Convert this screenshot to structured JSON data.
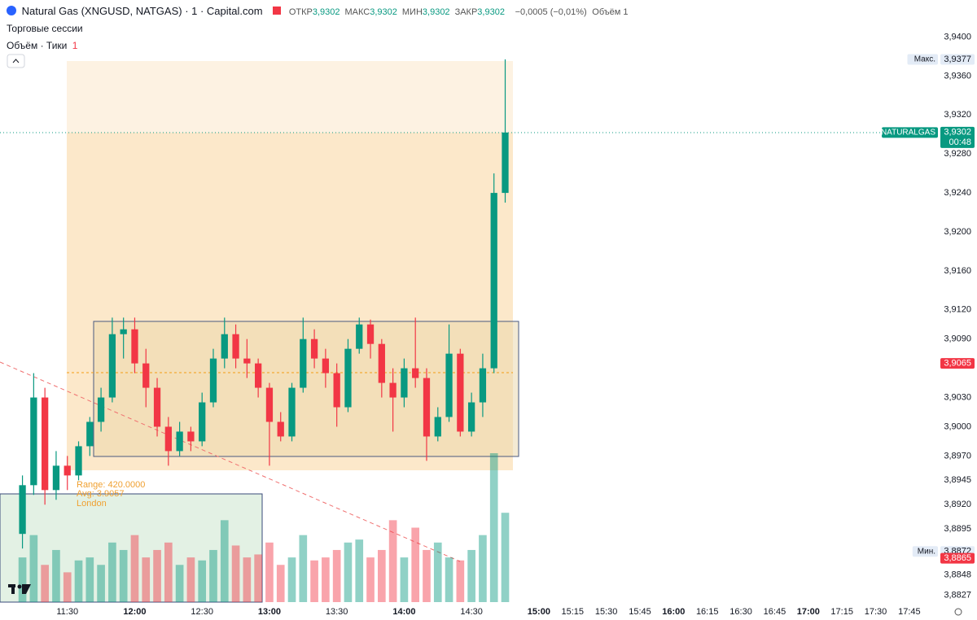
{
  "chart_data": {
    "type": "candlestick",
    "title": "Natural Gas (XNGUSD, NATGAS) · 1 · Capital.com",
    "ohlc_legend": [
      {
        "label": "ОТКР",
        "value": "3,9302"
      },
      {
        "label": "МАКС",
        "value": "3,9302"
      },
      {
        "label": "МИН",
        "value": "3,9302"
      },
      {
        "label": "ЗАКР",
        "value": "3,9302"
      }
    ],
    "change": "−0,0005 (−0,01%)",
    "volume_legend": {
      "label": "Объём",
      "value": "1"
    },
    "sessions_label": "Торговые сессии",
    "volume_pane": {
      "label": "Объём · Тики",
      "value": "1"
    },
    "annotations": [
      "Range: 420.0000",
      "Avg: 3.9057",
      "London"
    ],
    "up_color": "#089981",
    "down_color": "#f23645",
    "x": [
      670,
      675,
      680,
      685,
      690,
      695,
      700,
      705,
      710,
      715,
      720,
      725,
      730,
      735,
      740,
      745,
      750,
      755,
      760,
      765,
      770,
      775,
      780,
      785,
      790,
      795,
      800,
      805,
      810,
      815,
      820,
      825,
      830,
      835,
      840,
      845,
      850,
      855,
      860,
      865,
      870,
      875,
      880,
      885
    ],
    "open": [
      3.889,
      3.894,
      3.903,
      3.8935,
      3.896,
      3.895,
      3.898,
      3.9005,
      3.903,
      3.9095,
      3.91,
      3.9065,
      3.904,
      3.9,
      3.8975,
      3.8995,
      3.8985,
      3.9025,
      3.907,
      3.9095,
      3.907,
      3.9065,
      3.904,
      3.9005,
      3.899,
      3.904,
      3.909,
      3.907,
      3.9055,
      3.902,
      3.908,
      3.9105,
      3.9085,
      3.9045,
      3.903,
      3.906,
      3.905,
      3.899,
      3.901,
      3.9075,
      3.8995,
      3.9025,
      3.906,
      3.924
    ],
    "high": [
      3.895,
      3.9055,
      3.904,
      3.8975,
      3.897,
      3.8985,
      3.901,
      3.904,
      3.9112,
      3.9112,
      3.9112,
      3.908,
      3.905,
      3.901,
      3.9005,
      3.9,
      3.9035,
      3.908,
      3.9112,
      3.9105,
      3.909,
      3.907,
      3.9045,
      3.9015,
      3.9045,
      3.9112,
      3.91,
      3.908,
      3.9065,
      3.909,
      3.9112,
      3.911,
      3.909,
      3.906,
      3.907,
      3.9112,
      3.906,
      3.902,
      3.9105,
      3.908,
      3.9035,
      3.9075,
      3.926,
      3.9377
    ],
    "low": [
      3.8875,
      3.893,
      3.892,
      3.8925,
      3.8935,
      3.8945,
      3.897,
      3.8995,
      3.9025,
      3.907,
      3.9055,
      3.902,
      3.899,
      3.896,
      3.897,
      3.8975,
      3.898,
      3.902,
      3.906,
      3.906,
      3.905,
      3.903,
      3.896,
      3.8985,
      3.8985,
      3.9035,
      3.906,
      3.904,
      3.9,
      3.9015,
      3.9075,
      3.907,
      3.903,
      3.8995,
      3.902,
      3.904,
      3.8965,
      3.8985,
      3.9005,
      3.899,
      3.899,
      3.901,
      3.9055,
      3.923
    ],
    "close": [
      3.894,
      3.903,
      3.8935,
      3.896,
      3.895,
      3.898,
      3.9005,
      3.903,
      3.9095,
      3.91,
      3.9065,
      3.904,
      3.9,
      3.8975,
      3.8995,
      3.8985,
      3.9025,
      3.907,
      3.9095,
      3.907,
      3.9065,
      3.904,
      3.9005,
      3.899,
      3.904,
      3.909,
      3.907,
      3.9055,
      3.902,
      3.908,
      3.9105,
      3.9085,
      3.9045,
      3.903,
      3.906,
      3.905,
      3.899,
      3.901,
      3.9075,
      3.8995,
      3.9025,
      3.906,
      3.924,
      3.9302
    ],
    "volume": [
      30,
      45,
      25,
      35,
      20,
      28,
      30,
      25,
      40,
      35,
      45,
      30,
      35,
      40,
      25,
      30,
      28,
      35,
      55,
      38,
      30,
      32,
      40,
      25,
      30,
      45,
      28,
      30,
      35,
      40,
      42,
      30,
      35,
      55,
      30,
      50,
      35,
      40,
      30,
      28,
      35,
      45,
      100,
      60
    ],
    "xlim": [
      660,
      1077
    ],
    "ylim": [
      3.882,
      3.9438
    ],
    "xticks": [
      {
        "value": 690,
        "label": "11:30"
      },
      {
        "value": 720,
        "label": "12:00"
      },
      {
        "value": 750,
        "label": "12:30"
      },
      {
        "value": 780,
        "label": "13:00"
      },
      {
        "value": 810,
        "label": "13:30"
      },
      {
        "value": 840,
        "label": "14:00"
      },
      {
        "value": 870,
        "label": "14:30"
      },
      {
        "value": 900,
        "label": "15:00"
      },
      {
        "value": 915,
        "label": "15:15"
      },
      {
        "value": 930,
        "label": "15:30"
      },
      {
        "value": 945,
        "label": "15:45"
      },
      {
        "value": 960,
        "label": "16:00"
      },
      {
        "value": 975,
        "label": "16:15"
      },
      {
        "value": 990,
        "label": "16:30"
      },
      {
        "value": 1005,
        "label": "16:45"
      },
      {
        "value": 1020,
        "label": "17:00"
      },
      {
        "value": 1035,
        "label": "17:15"
      },
      {
        "value": 1050,
        "label": "17:30"
      },
      {
        "value": 1065,
        "label": "17:45"
      }
    ],
    "yticks": [
      {
        "value": 3.94,
        "label": "3,9400"
      },
      {
        "value": 3.936,
        "label": "3,9360"
      },
      {
        "value": 3.932,
        "label": "3,9320"
      },
      {
        "value": 3.928,
        "label": "3,9280"
      },
      {
        "value": 3.924,
        "label": "3,9240"
      },
      {
        "value": 3.92,
        "label": "3,9200"
      },
      {
        "value": 3.916,
        "label": "3,9160"
      },
      {
        "value": 3.912,
        "label": "3,9120"
      },
      {
        "value": 3.909,
        "label": "3,9090"
      },
      {
        "value": 3.903,
        "label": "3,9030"
      },
      {
        "value": 3.9,
        "label": "3,9000"
      },
      {
        "value": 3.897,
        "label": "3,8970"
      },
      {
        "value": 3.8945,
        "label": "3,8945"
      },
      {
        "value": 3.892,
        "label": "3,8920"
      },
      {
        "value": 3.8895,
        "label": "3,8895"
      },
      {
        "value": 3.8848,
        "label": "3,8848"
      },
      {
        "value": 3.8827,
        "label": "3,8827"
      }
    ],
    "price_labels": [
      {
        "value": 3.9377,
        "label": "3,9377",
        "tag": "Макс.",
        "color": "#e3ebf6"
      },
      {
        "value": 3.9302,
        "label": "3,9302",
        "tag": "NATURALGAS",
        "sub": "00:48",
        "color": "#089981"
      },
      {
        "value": 3.9065,
        "label": "3,9065",
        "color": "#f23645"
      },
      {
        "value": 3.8872,
        "label": "3,8872",
        "tag": "Мин.",
        "color": "#e3ebf6"
      },
      {
        "value": 3.8865,
        "label": "3,8865",
        "color": "#f23645"
      }
    ]
  }
}
